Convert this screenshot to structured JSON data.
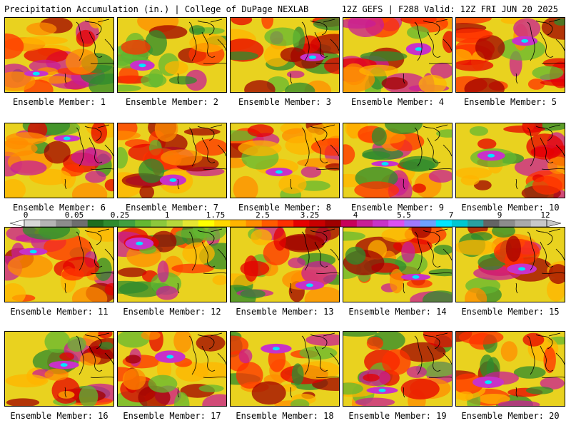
{
  "header": {
    "title": "Precipitation Accumulation (in.) | College of DuPage NEXLAB",
    "run_info": "12Z GEFS | F288 Valid: 12Z FRI JUN 20 2025"
  },
  "colorbar": {
    "tick_labels": [
      "0",
      "0.05",
      "0.25",
      "1",
      "1.75",
      "2.5",
      "3.25",
      "4",
      "5.5",
      "7",
      "9",
      "12"
    ],
    "colors": [
      "#d8d8d8",
      "#b4b4b4",
      "#8c8c8c",
      "#6e6e6e",
      "#1e6e1e",
      "#2e8b2e",
      "#40a040",
      "#63b832",
      "#8cc83c",
      "#b6d83c",
      "#e6e632",
      "#ffff00",
      "#ffd700",
      "#ffb400",
      "#ff8c00",
      "#ff5a00",
      "#ff3000",
      "#e60000",
      "#c80000",
      "#a00000",
      "#c8005a",
      "#c81e96",
      "#c832c8",
      "#dc50f0",
      "#a078ff",
      "#6ea0ff",
      "#00e6ff",
      "#00c8d2",
      "#28a0a0",
      "#646464",
      "#8c8c8c",
      "#aaaaaa",
      "#c8c8c8"
    ]
  },
  "panels": [
    {
      "label": "Ensemble Member: 1"
    },
    {
      "label": "Ensemble Member: 2"
    },
    {
      "label": "Ensemble Member: 3"
    },
    {
      "label": "Ensemble Member: 4"
    },
    {
      "label": "Ensemble Member: 5"
    },
    {
      "label": "Ensemble Member: 6"
    },
    {
      "label": "Ensemble Member: 7"
    },
    {
      "label": "Ensemble Member: 8"
    },
    {
      "label": "Ensemble Member: 9"
    },
    {
      "label": "Ensemble Member: 10"
    },
    {
      "label": "Ensemble Member: 11"
    },
    {
      "label": "Ensemble Member: 12"
    },
    {
      "label": "Ensemble Member: 13"
    },
    {
      "label": "Ensemble Member: 14"
    },
    {
      "label": "Ensemble Member: 15"
    },
    {
      "label": "Ensemble Member: 16"
    },
    {
      "label": "Ensemble Member: 17"
    },
    {
      "label": "Ensemble Member: 18"
    },
    {
      "label": "Ensemble Member: 19"
    },
    {
      "label": "Ensemble Member: 20"
    }
  ]
}
